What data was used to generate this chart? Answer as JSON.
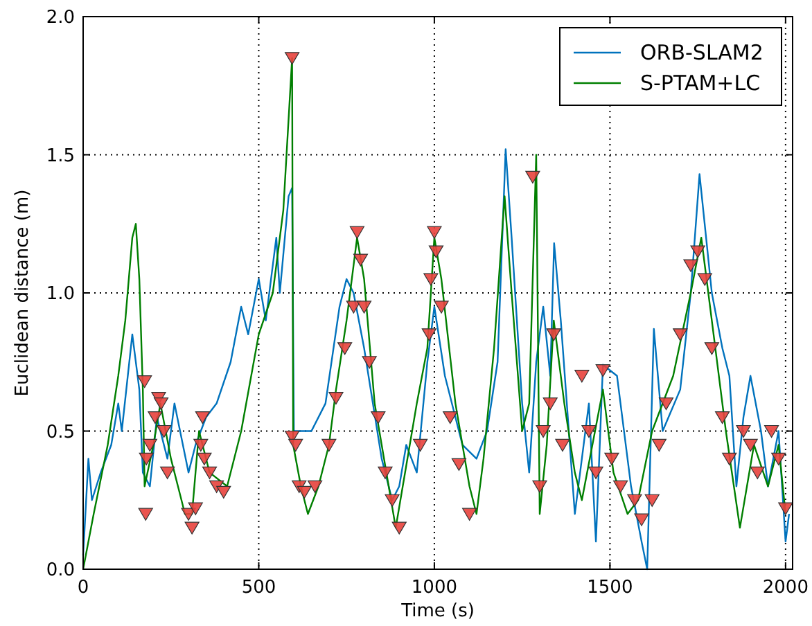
{
  "chart_data": {
    "type": "line",
    "xlabel": "Time (s)",
    "ylabel": "Euclidean distance (m)",
    "xlim": [
      0,
      2020
    ],
    "ylim": [
      0,
      2
    ],
    "xticks": [
      0,
      500,
      1000,
      1500,
      2000
    ],
    "yticks": [
      {
        "value": 0,
        "label": "0.0"
      },
      {
        "value": 0.5,
        "label": "0.5"
      },
      {
        "value": 1,
        "label": "1.0"
      },
      {
        "value": 1.5,
        "label": "1.5"
      },
      {
        "value": 2,
        "label": "2.0"
      }
    ],
    "grid": true,
    "legend": "top right",
    "series": [
      {
        "name": "ORB-SLAM2",
        "color": "#0072bd",
        "x": [
          0,
          15,
          25,
          50,
          80,
          100,
          110,
          140,
          160,
          170,
          190,
          210,
          240,
          260,
          300,
          320,
          350,
          380,
          420,
          450,
          470,
          500,
          520,
          550,
          560,
          585,
          595,
          600,
          650,
          690,
          730,
          750,
          770,
          800,
          850,
          880,
          900,
          920,
          950,
          980,
          1000,
          1030,
          1080,
          1120,
          1150,
          1180,
          1203,
          1220,
          1250,
          1270,
          1290,
          1310,
          1330,
          1341,
          1360,
          1400,
          1440,
          1460,
          1480,
          1520,
          1560,
          1590,
          1606,
          1625,
          1650,
          1700,
          1730,
          1755,
          1790,
          1820,
          1840,
          1860,
          1880,
          1900,
          1930,
          1950,
          1980,
          2000,
          2010
        ],
        "values": [
          0.05,
          0.4,
          0.25,
          0.35,
          0.45,
          0.6,
          0.5,
          0.85,
          0.65,
          0.35,
          0.3,
          0.55,
          0.4,
          0.6,
          0.35,
          0.45,
          0.55,
          0.6,
          0.75,
          0.95,
          0.85,
          1.05,
          0.9,
          1.2,
          1.0,
          1.35,
          1.38,
          0.5,
          0.5,
          0.6,
          0.95,
          1.05,
          1.0,
          0.8,
          0.4,
          0.25,
          0.3,
          0.45,
          0.35,
          0.75,
          0.95,
          0.7,
          0.45,
          0.4,
          0.5,
          0.75,
          1.52,
          1.2,
          0.6,
          0.35,
          0.75,
          0.95,
          0.7,
          1.18,
          0.9,
          0.2,
          0.6,
          0.1,
          0.74,
          0.7,
          0.3,
          0.1,
          0.0,
          0.87,
          0.5,
          0.65,
          1.0,
          1.43,
          1.0,
          0.8,
          0.7,
          0.3,
          0.55,
          0.7,
          0.5,
          0.3,
          0.5,
          0.1,
          0.2
        ]
      },
      {
        "name": "S-PTAM+LC",
        "color": "#007f00",
        "x": [
          0,
          30,
          70,
          100,
          120,
          140,
          150,
          160,
          170,
          175,
          200,
          220,
          250,
          290,
          310,
          330,
          360,
          410,
          450,
          500,
          540,
          570,
          595,
          598,
          620,
          640,
          670,
          700,
          720,
          750,
          780,
          800,
          830,
          870,
          890,
          910,
          950,
          980,
          1000,
          1020,
          1060,
          1100,
          1120,
          1140,
          1170,
          1200,
          1220,
          1250,
          1270,
          1290,
          1300,
          1320,
          1340,
          1370,
          1400,
          1420,
          1450,
          1480,
          1510,
          1550,
          1580,
          1620,
          1680,
          1730,
          1760,
          1790,
          1830,
          1870,
          1910,
          1950,
          1980,
          2000
        ],
        "values": [
          0,
          0.2,
          0.45,
          0.7,
          0.9,
          1.2,
          1.25,
          1.05,
          0.65,
          0.3,
          0.45,
          0.6,
          0.4,
          0.2,
          0.2,
          0.5,
          0.35,
          0.3,
          0.5,
          0.85,
          1.0,
          1.3,
          1.85,
          0.45,
          0.3,
          0.2,
          0.3,
          0.45,
          0.65,
          0.9,
          1.2,
          1.05,
          0.6,
          0.3,
          0.15,
          0.3,
          0.6,
          0.8,
          1.2,
          1.05,
          0.6,
          0.3,
          0.2,
          0.4,
          0.8,
          1.35,
          1.0,
          0.5,
          0.6,
          1.5,
          0.2,
          0.45,
          0.9,
          0.6,
          0.35,
          0.25,
          0.45,
          0.65,
          0.35,
          0.2,
          0.25,
          0.5,
          0.7,
          1.0,
          1.2,
          0.9,
          0.5,
          0.15,
          0.45,
          0.3,
          0.45,
          0.2
        ]
      },
      {
        "type": "scatter",
        "color": "#e8413c",
        "marker": "triangle",
        "x": [
          175,
          180,
          178,
          190,
          205,
          215,
          222,
          230,
          240,
          300,
          310,
          320,
          335,
          340,
          345,
          360,
          380,
          400,
          595,
          595,
          605,
          615,
          630,
          660,
          700,
          720,
          745,
          770,
          780,
          790,
          800,
          815,
          840,
          860,
          880,
          900,
          960,
          985,
          990,
          1000,
          1005,
          1020,
          1045,
          1070,
          1100,
          1280,
          1300,
          1310,
          1330,
          1340,
          1365,
          1420,
          1440,
          1460,
          1480,
          1505,
          1530,
          1570,
          1590,
          1620,
          1640,
          1660,
          1700,
          1730,
          1750,
          1770,
          1790,
          1820,
          1840,
          1880,
          1900,
          1920,
          1960,
          1980,
          2000
        ],
        "values": [
          0.68,
          0.4,
          0.2,
          0.45,
          0.55,
          0.62,
          0.6,
          0.5,
          0.35,
          0.2,
          0.15,
          0.22,
          0.45,
          0.55,
          0.4,
          0.35,
          0.3,
          0.28,
          1.85,
          0.48,
          0.45,
          0.3,
          0.28,
          0.3,
          0.45,
          0.62,
          0.8,
          0.95,
          1.22,
          1.12,
          0.95,
          0.75,
          0.55,
          0.35,
          0.25,
          0.15,
          0.45,
          0.85,
          1.05,
          1.22,
          1.15,
          0.95,
          0.55,
          0.38,
          0.2,
          1.42,
          0.3,
          0.5,
          0.6,
          0.85,
          0.45,
          0.7,
          0.5,
          0.35,
          0.72,
          0.4,
          0.3,
          0.25,
          0.18,
          0.25,
          0.45,
          0.6,
          0.85,
          1.1,
          1.15,
          1.05,
          0.8,
          0.55,
          0.4,
          0.5,
          0.45,
          0.35,
          0.5,
          0.4,
          0.22
        ]
      }
    ]
  }
}
